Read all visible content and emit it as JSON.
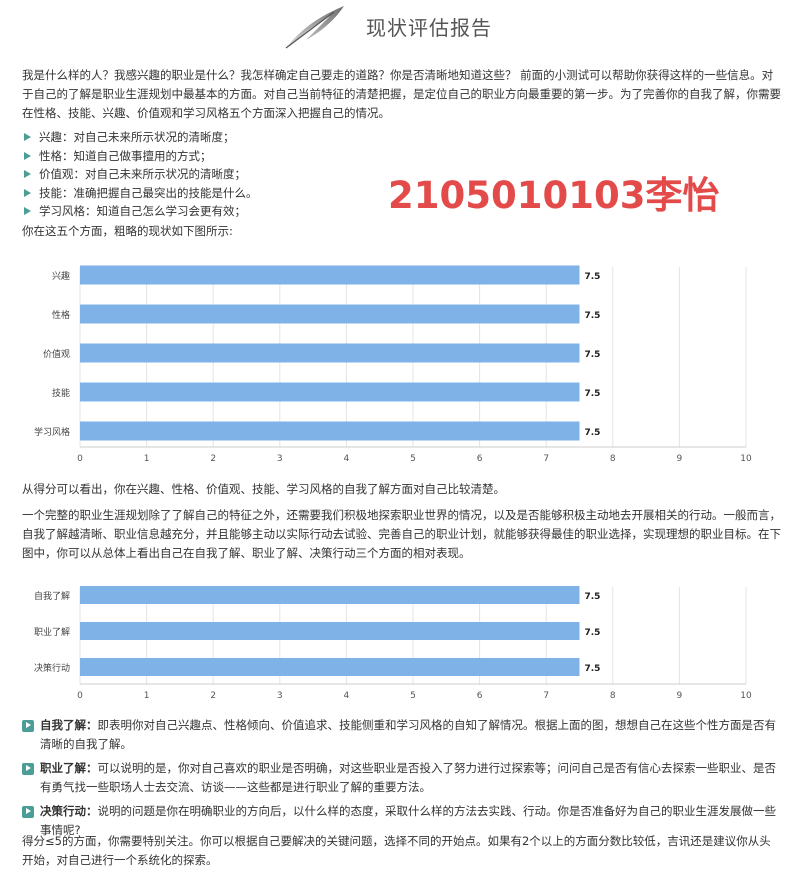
{
  "header": {
    "title": "现状评估报告",
    "logo_icon": "feather-icon"
  },
  "intro": "我是什么样的人？我感兴趣的职业是什么？我怎样确定自己要走的道路？你是否清晰地知道这些？ 前面的小测试可以帮助你获得这样的一些信息。对于自己的了解是职业生涯规划中最基本的方面。对自己当前特征的清楚把握，是定位自己的职业方向最重要的第一步。为了完善你的自我了解，你需要在性格、技能、兴趣、价值观和学习风格五个方面深入把握自己的情况。",
  "aspects": [
    "兴趣：对自己未来所示状况的清晰度；",
    "性格：知道自己做事擅用的方式；",
    "价值观：对自己未来所示状况的清晰度；",
    "技能：准确把握自己最突出的技能是什么。",
    "学习风格：知道自己怎么学习会更有效；"
  ],
  "stamp": "2105010103李怡",
  "chart1_caption": "你在这五个方面，粗略的现状如下图所示:",
  "after_chart1": "从得分可以看出，你在兴趣、性格、价值观、技能、学习风格的自我了解方面对自己比较清楚。",
  "para2": "一个完整的职业生涯规划除了了解自己的特征之外，还需要我们积极地探索职业世界的情况，以及是否能够积极主动地去开展相关的行动。一般而言，自我了解越清晰、职业信息越充分，并且能够主动以实际行动去试验、完善自己的职业计划，就能够获得最佳的职业选择，实现理想的职业目标。在下图中，你可以从总体上看出自己在自我了解、职业了解、决策行动三个方面的相对表现。",
  "definitions": [
    {
      "term": "自我了解：",
      "text": "即表明你对自己兴趣点、性格倾向、价值追求、技能侧重和学习风格的自知了解情况。根据上面的图，想想自己在这些个性方面是否有清晰的自我了解。"
    },
    {
      "term": "职业了解：",
      "text": "可以说明的是，你对自己喜欢的职业是否明确，对这些职业是否投入了努力进行过探索等；问问自己是否有信心去探索一些职业、是否有勇气找一些职场人士去交流、访谈——这些都是进行职业了解的重要方法。"
    },
    {
      "term": "决策行动：",
      "text": "说明的问题是你在明确职业的方向后，以什么样的态度，采取什么样的方法去实践、行动。你是否准备好为自己的职业生涯发展做一些事情呢?"
    }
  ],
  "closing": "得分≤5的方面，你需要特别关注。你可以根据自己要解决的关键问题，选择不同的开始点。如果有2个以上的方面分数比较低，吉讯还是建议你从头开始，对自己进行一个系统化的探索。",
  "colors": {
    "bar": "#7fb3e8",
    "accent": "#4a9e96",
    "stamp": "#e34a4a"
  },
  "chart_data": [
    {
      "type": "bar",
      "orientation": "horizontal",
      "categories": [
        "兴趣",
        "性格",
        "价值观",
        "技能",
        "学习风格"
      ],
      "values": [
        7.5,
        7.5,
        7.5,
        7.5,
        7.5
      ],
      "value_labels": [
        "7.5",
        "7.5",
        "7.5",
        "7.5",
        "7.5"
      ],
      "xlim": [
        0,
        10
      ],
      "xticks": [
        "0",
        "1",
        "2",
        "3",
        "4",
        "5",
        "6",
        "7",
        "8",
        "9",
        "10"
      ],
      "grid": true
    },
    {
      "type": "bar",
      "orientation": "horizontal",
      "categories": [
        "自我了解",
        "职业了解",
        "决策行动"
      ],
      "values": [
        7.5,
        7.5,
        7.5
      ],
      "value_labels": [
        "7.5",
        "7.5",
        "7.5"
      ],
      "xlim": [
        0,
        10
      ],
      "xticks": [
        "0",
        "1",
        "2",
        "3",
        "4",
        "5",
        "6",
        "7",
        "8",
        "9",
        "10"
      ],
      "grid": true
    }
  ]
}
